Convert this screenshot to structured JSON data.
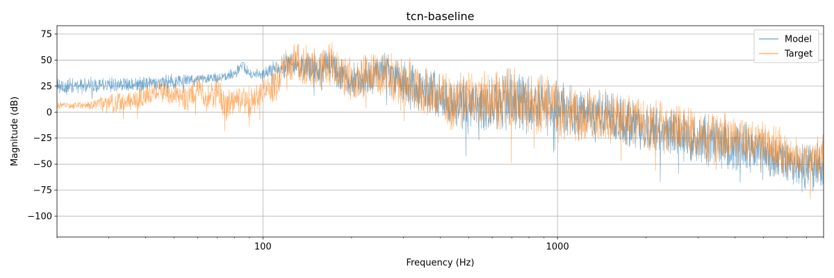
{
  "chart_data": {
    "type": "line",
    "title": "tcn-baseline",
    "xlabel": "Frequency (Hz)",
    "ylabel": "Magnitude (dB)",
    "xscale": "log",
    "xlim": [
      20,
      8000
    ],
    "ylim": [
      -120,
      83
    ],
    "xticks": [
      {
        "value": 100,
        "label": "100"
      },
      {
        "value": 1000,
        "label": "1000"
      }
    ],
    "yticks": [
      {
        "value": 75,
        "label": "75"
      },
      {
        "value": 50,
        "label": "50"
      },
      {
        "value": 25,
        "label": "25"
      },
      {
        "value": 0,
        "label": "0"
      },
      {
        "value": -25,
        "label": "−25"
      },
      {
        "value": -50,
        "label": "−50"
      },
      {
        "value": -75,
        "label": "−75"
      },
      {
        "value": -100,
        "label": "−100"
      }
    ],
    "grid": true,
    "legend": "top-right",
    "series": [
      {
        "name": "Model",
        "color": "#1f77b4",
        "envelope": {
          "freq": [
            20,
            30,
            40,
            50,
            60,
            70,
            80,
            85,
            90,
            100,
            110,
            120,
            130,
            150,
            170,
            200,
            230,
            260,
            300,
            350,
            400,
            450,
            500,
            600,
            700,
            800,
            1000,
            1200,
            1500,
            2000,
            2500,
            3000,
            4000,
            5000,
            6000,
            7000,
            8000
          ],
          "center": [
            24,
            26,
            27,
            30,
            32,
            33,
            37,
            45,
            38,
            37,
            42,
            44,
            48,
            40,
            46,
            30,
            34,
            40,
            28,
            20,
            15,
            10,
            8,
            5,
            12,
            8,
            2,
            -3,
            -5,
            -15,
            -22,
            -25,
            -32,
            -40,
            -50,
            -55,
            -52
          ],
          "spread": [
            10,
            8,
            8,
            8,
            6,
            6,
            6,
            6,
            6,
            6,
            10,
            14,
            16,
            18,
            18,
            20,
            22,
            22,
            22,
            24,
            26,
            28,
            30,
            32,
            34,
            34,
            30,
            30,
            28,
            28,
            28,
            28,
            28,
            28,
            24,
            24,
            30
          ]
        }
      },
      {
        "name": "Target",
        "color": "#ff7f0e",
        "envelope": {
          "freq": [
            20,
            25,
            30,
            35,
            40,
            45,
            50,
            55,
            60,
            65,
            70,
            75,
            80,
            90,
            100,
            110,
            120,
            130,
            150,
            170,
            200,
            230,
            260,
            300,
            350,
            400,
            450,
            500,
            600,
            700,
            800,
            1000,
            1200,
            1500,
            2000,
            2500,
            3000,
            4000,
            5000,
            6000,
            7000,
            8000
          ],
          "center": [
            6,
            6,
            8,
            10,
            16,
            20,
            18,
            14,
            22,
            12,
            20,
            6,
            14,
            10,
            20,
            28,
            42,
            48,
            40,
            46,
            30,
            36,
            38,
            30,
            20,
            15,
            10,
            12,
            8,
            14,
            10,
            3,
            -2,
            -5,
            -12,
            -18,
            -20,
            -26,
            -32,
            -40,
            -45,
            -45
          ],
          "spread": [
            4,
            4,
            10,
            12,
            12,
            14,
            14,
            16,
            16,
            16,
            16,
            18,
            16,
            16,
            18,
            20,
            22,
            22,
            24,
            24,
            24,
            24,
            26,
            26,
            26,
            28,
            30,
            30,
            32,
            34,
            34,
            30,
            30,
            28,
            28,
            28,
            28,
            26,
            26,
            24,
            22,
            24
          ]
        }
      }
    ]
  }
}
